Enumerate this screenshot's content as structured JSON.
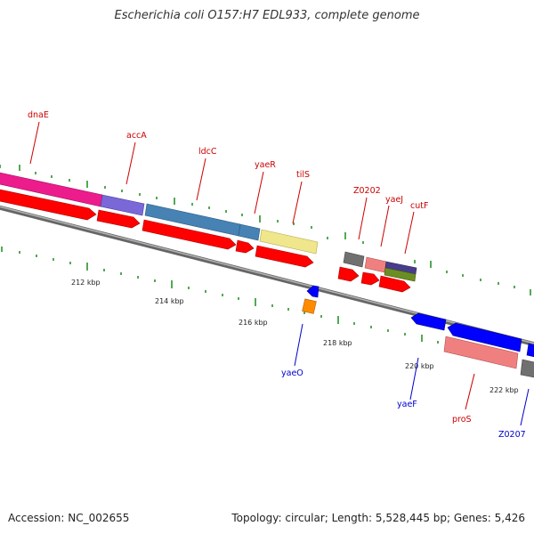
{
  "title": "Escherichia coli O157:H7 EDL933, complete genome",
  "footer": {
    "accession": "Accession: NC_002655",
    "topology": "Topology: circular; Length: 5,528,445 bp; Genes: 5,426"
  },
  "scale": {
    "ticks": [
      {
        "label": "212 kbp"
      },
      {
        "label": "214 kbp"
      },
      {
        "label": "216 kbp"
      },
      {
        "label": "218 kbp"
      },
      {
        "label": "220 kbp"
      },
      {
        "label": "222 kbp"
      }
    ]
  },
  "genes": [
    {
      "name": "dnaE",
      "strand": "forward",
      "color": "#cc0000"
    },
    {
      "name": "accA",
      "strand": "forward",
      "color": "#cc0000"
    },
    {
      "name": "ldcC",
      "strand": "forward",
      "color": "#cc0000"
    },
    {
      "name": "yaeR",
      "strand": "forward",
      "color": "#cc0000"
    },
    {
      "name": "tilS",
      "strand": "forward",
      "color": "#cc0000"
    },
    {
      "name": "Z0202",
      "strand": "forward",
      "color": "#cc0000"
    },
    {
      "name": "yaeJ",
      "strand": "forward",
      "color": "#cc0000"
    },
    {
      "name": "cutF",
      "strand": "forward",
      "color": "#cc0000"
    },
    {
      "name": "yaeO",
      "strand": "reverse",
      "color": "#0000cc"
    },
    {
      "name": "yaeF",
      "strand": "reverse",
      "color": "#0000cc"
    },
    {
      "name": "proS",
      "strand": "forward",
      "color": "#cc0000"
    },
    {
      "name": "Z0207",
      "strand": "reverse",
      "color": "#0000cc"
    }
  ],
  "colors": {
    "forward_cds": "#ff0000",
    "reverse_cds": "#0000ff",
    "backbone": "#808080",
    "tick": "#1a8a1a"
  }
}
